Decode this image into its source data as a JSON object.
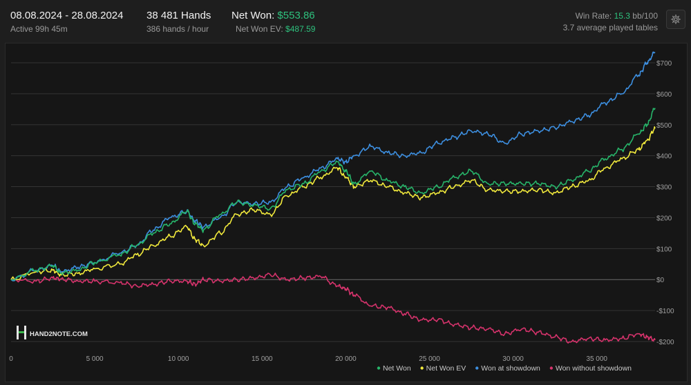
{
  "header": {
    "date_range": "08.08.2024 - 28.08.2024",
    "active": "Active 99h 45m",
    "hands": "38 481 Hands",
    "hands_per_hour": "386 hands / hour",
    "net_won_label": "Net Won:",
    "net_won_value": "$553.86",
    "net_won_ev_label": "Net Won  EV:",
    "net_won_ev_value": "$487.59",
    "win_rate_label": "Win Rate:",
    "win_rate_value": "15.3",
    "win_rate_unit": "bb/100",
    "tables": "3.7 average played tables",
    "settings_icon": "gear-icon"
  },
  "watermark": {
    "logo_text": "HAND2NOTE.COM"
  },
  "colors": {
    "net_won": "#27b56a",
    "net_won_ev": "#f2ea3c",
    "showdown": "#3d8fe0",
    "no_showdown": "#d6336c",
    "accent_green": "#2ec27e"
  },
  "chart_data": {
    "type": "line",
    "xlim": [
      0,
      38481
    ],
    "ylim": [
      -220,
      740
    ],
    "x_ticks": [
      0,
      5000,
      10000,
      15000,
      20000,
      25000,
      30000,
      35000
    ],
    "x_tick_labels": [
      "0",
      "5 000",
      "10 000",
      "15 000",
      "20 000",
      "25 000",
      "30 000",
      "35 000"
    ],
    "y_ticks": [
      -200,
      -100,
      0,
      100,
      200,
      300,
      400,
      500,
      600,
      700
    ],
    "y_tick_labels": [
      "-$200",
      "-$100",
      "$0",
      "$100",
      "$200",
      "$300",
      "$400",
      "$500",
      "$600",
      "$700"
    ],
    "legend_position": "bottom-right",
    "x": [
      0,
      1500,
      2500,
      3000,
      4000,
      5000,
      6500,
      7500,
      8500,
      9500,
      10500,
      11000,
      11500,
      12500,
      13500,
      14500,
      15500,
      16500,
      17500,
      18500,
      19500,
      20000,
      20500,
      21500,
      22500,
      23500,
      24500,
      25500,
      26500,
      27500,
      28500,
      29500,
      30500,
      31500,
      32500,
      33500,
      34500,
      35500,
      36500,
      37500,
      38000,
      38481
    ],
    "series": [
      {
        "name": "Net Won",
        "key": "net_won",
        "values": [
          0,
          30,
          45,
          20,
          30,
          55,
          80,
          110,
          150,
          180,
          220,
          180,
          160,
          210,
          250,
          240,
          230,
          290,
          310,
          350,
          380,
          350,
          310,
          350,
          320,
          300,
          280,
          300,
          330,
          350,
          310,
          310,
          310,
          310,
          300,
          320,
          350,
          390,
          420,
          470,
          500,
          553.86
        ]
      },
      {
        "name": "Net Won  EV",
        "key": "net_won_ev",
        "values": [
          0,
          25,
          30,
          15,
          20,
          35,
          50,
          80,
          110,
          140,
          170,
          130,
          110,
          150,
          210,
          225,
          210,
          270,
          300,
          330,
          360,
          330,
          300,
          320,
          300,
          280,
          265,
          280,
          300,
          320,
          290,
          285,
          285,
          290,
          280,
          300,
          320,
          360,
          390,
          420,
          450,
          487.59
        ]
      },
      {
        "name": "Won at showdown",
        "key": "showdown",
        "values": [
          0,
          30,
          45,
          25,
          40,
          55,
          85,
          110,
          160,
          200,
          220,
          190,
          170,
          200,
          250,
          245,
          250,
          300,
          330,
          360,
          390,
          380,
          400,
          430,
          410,
          400,
          410,
          440,
          460,
          480,
          470,
          440,
          470,
          480,
          490,
          510,
          530,
          570,
          600,
          660,
          700,
          734
        ]
      },
      {
        "name": "Won without showdown",
        "key": "no_showdown",
        "values": [
          0,
          -5,
          5,
          2,
          -5,
          -5,
          -10,
          -20,
          -15,
          -5,
          -5,
          -15,
          0,
          -5,
          0,
          5,
          15,
          0,
          5,
          10,
          -20,
          -30,
          -50,
          -85,
          -90,
          -110,
          -130,
          -130,
          -145,
          -155,
          -160,
          -175,
          -160,
          -170,
          -185,
          -200,
          -190,
          -195,
          -190,
          -175,
          -185,
          -195
        ]
      }
    ]
  }
}
